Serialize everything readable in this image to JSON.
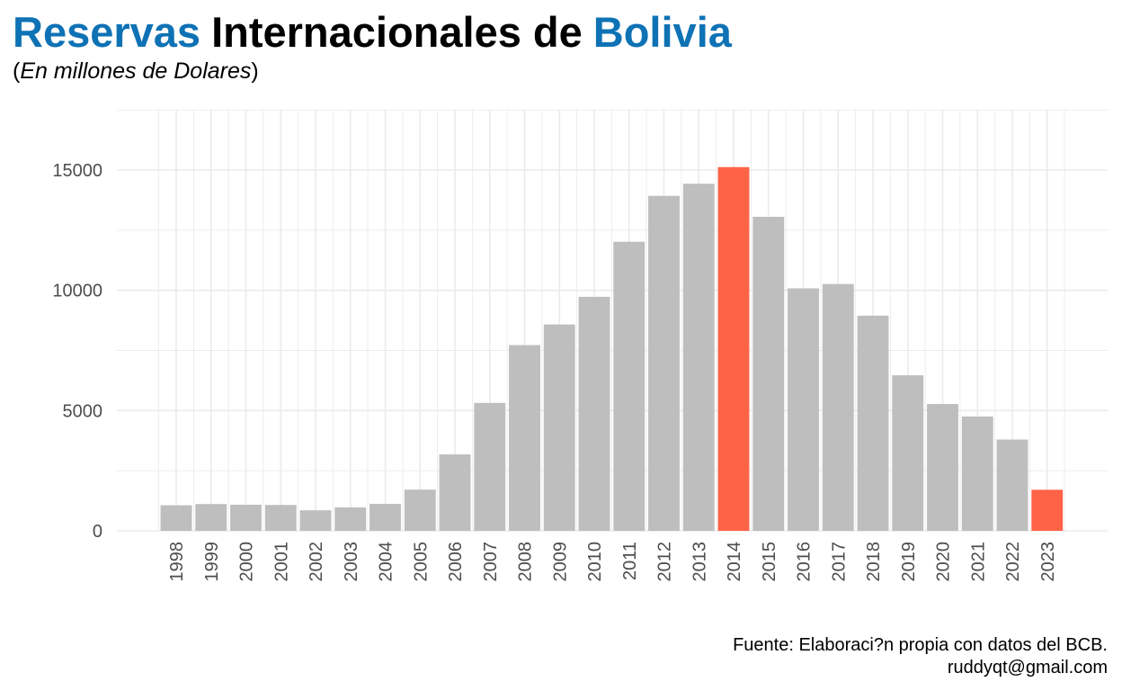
{
  "header": {
    "title_part1": "Reservas",
    "title_part2": "Internacionales de",
    "title_part3": "Bolivia",
    "subtitle_open": "(",
    "subtitle_text": "En millones de Dolares",
    "subtitle_close": ")"
  },
  "colors": {
    "title_accent": "#0e72b5",
    "bar_default": "#bebebe",
    "bar_highlight": "#ff6347",
    "grid": "#ebebeb"
  },
  "chart_data": {
    "type": "bar",
    "title": "Reservas Internacionales de Bolivia",
    "subtitle": "(En millones de Dolares)",
    "xlabel": "",
    "ylabel": "",
    "categories": [
      "1998",
      "1999",
      "2000",
      "2001",
      "2002",
      "2003",
      "2004",
      "2005",
      "2006",
      "2007",
      "2008",
      "2009",
      "2010",
      "2011",
      "2012",
      "2013",
      "2014",
      "2015",
      "2016",
      "2017",
      "2018",
      "2019",
      "2020",
      "2021",
      "2022",
      "2023"
    ],
    "values": [
      1063,
      1114,
      1085,
      1077,
      854,
      976,
      1123,
      1714,
      3178,
      5319,
      7722,
      8580,
      9730,
      12019,
      13927,
      14430,
      15123,
      13056,
      10081,
      10261,
      8946,
      6468,
      5276,
      4753,
      3796,
      1709
    ],
    "highlighted": [
      "2014",
      "2023"
    ],
    "y_ticks": [
      0,
      5000,
      10000,
      15000
    ],
    "ylim": [
      0,
      17500
    ],
    "grid": true,
    "legend": "none",
    "x_tick_rotation": -90
  },
  "caption": {
    "line1": "Fuente: Elaboraci?n propia con datos del BCB.",
    "line2": "ruddyqt@gmail.com"
  }
}
